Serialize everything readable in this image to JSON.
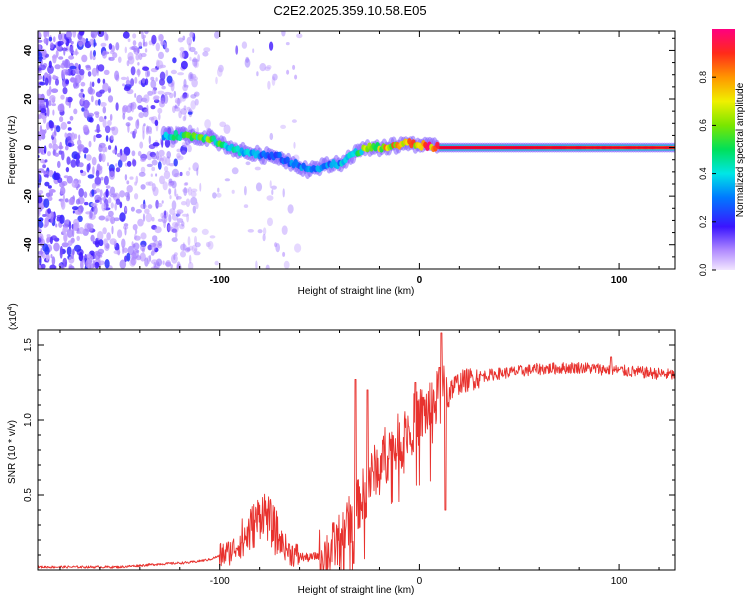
{
  "title": "C2E2.2025.359.10.58.E05",
  "colors": {
    "snr_line": "#e8322e",
    "ridge": "#e4002b",
    "scatter": "#7a22e8",
    "axis": "#000000"
  },
  "chart_data": [
    {
      "type": "heatmap",
      "xlabel": "Height of straight line (km)",
      "ylabel": "Frequency (Hz)",
      "xlim": [
        -191,
        128
      ],
      "ylim": [
        -50,
        48
      ],
      "xticks": [
        -100,
        0,
        100
      ],
      "yticks": [
        -40,
        -20,
        0,
        20,
        40
      ],
      "ridge": {
        "x": [
          -128,
          -118,
          -105,
          -92,
          -80,
          -70,
          -62,
          -56,
          -50,
          -44,
          -38,
          -32,
          -25,
          -18,
          -10,
          -5,
          0,
          5,
          10,
          40,
          70,
          100,
          128
        ],
        "y": [
          5,
          5,
          4,
          -1,
          -3,
          -4,
          -7,
          -9,
          -8,
          -7,
          -6,
          -2,
          0,
          0,
          1,
          2,
          1,
          0.5,
          0,
          0,
          0,
          0,
          0
        ],
        "intensity": [
          0.4,
          0.5,
          0.55,
          0.4,
          0.3,
          0.25,
          0.3,
          0.3,
          0.3,
          0.3,
          0.4,
          0.5,
          0.6,
          0.7,
          0.75,
          0.8,
          0.8,
          0.85,
          1,
          1,
          0.9,
          0.85,
          0.85
        ]
      },
      "colorbar": {
        "label": "Normalized spectral amplitude",
        "ticks": [
          "0.0",
          "0.2",
          "0.4",
          "0.6",
          "0.8"
        ],
        "range": [
          0,
          1
        ]
      }
    },
    {
      "type": "line",
      "xlabel": "Height of straight line (km)",
      "ylabel": "SNR (10 * v/v)",
      "ymultiplier": "(x10",
      "ymultiplier_exp": "4",
      "xlim": [
        -191,
        128
      ],
      "ylim": [
        0,
        1.6
      ],
      "xticks": [
        -100,
        0,
        100
      ],
      "yticks": [
        "0.5",
        "1.0",
        "1.5"
      ],
      "series": [
        {
          "name": "SNR",
          "envelope": [
            [
              -191,
              0.02
            ],
            [
              -150,
              0.02
            ],
            [
              -130,
              0.04
            ],
            [
              -115,
              0.05
            ],
            [
              -105,
              0.07
            ],
            [
              -95,
              0.12
            ],
            [
              -88,
              0.2
            ],
            [
              -82,
              0.32
            ],
            [
              -78,
              0.4
            ],
            [
              -74,
              0.3
            ],
            [
              -70,
              0.2
            ],
            [
              -65,
              0.12
            ],
            [
              -60,
              0.09
            ],
            [
              -55,
              0.08
            ],
            [
              -50,
              0.1
            ],
            [
              -45,
              0.12
            ],
            [
              -40,
              0.2
            ],
            [
              -35,
              0.32
            ],
            [
              -30,
              0.45
            ],
            [
              -25,
              0.6
            ],
            [
              -20,
              0.72
            ],
            [
              -15,
              0.8
            ],
            [
              -10,
              0.85
            ],
            [
              -5,
              0.95
            ],
            [
              0,
              1.02
            ],
            [
              5,
              1.08
            ],
            [
              10,
              1.15
            ],
            [
              15,
              1.2
            ],
            [
              20,
              1.25
            ],
            [
              30,
              1.29
            ],
            [
              40,
              1.31
            ],
            [
              60,
              1.34
            ],
            [
              80,
              1.35
            ],
            [
              100,
              1.33
            ],
            [
              128,
              1.3
            ]
          ],
          "peaks": [
            [
              -32,
              1.27
            ],
            [
              -26,
              1.2
            ],
            [
              -2,
              1.25
            ],
            [
              10,
              1.35
            ],
            [
              11,
              1.58
            ],
            [
              13,
              0.4
            ],
            [
              96,
              1.42
            ]
          ]
        }
      ]
    }
  ]
}
